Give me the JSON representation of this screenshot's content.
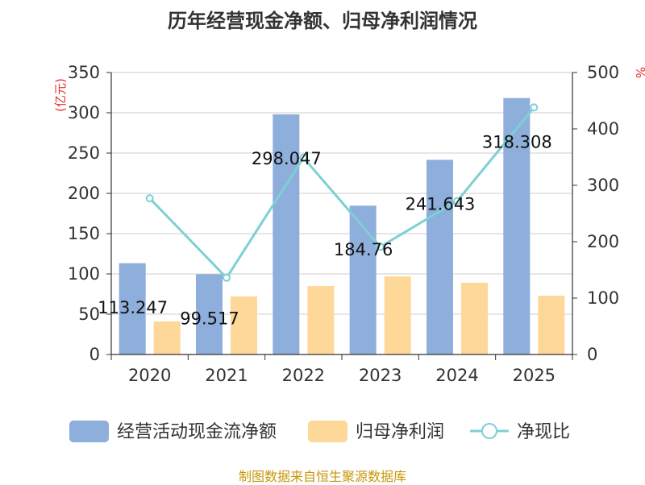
{
  "chart_data": {
    "type": "bar",
    "title": "历年经营现金净额、归母净利润情况",
    "categories": [
      "2020",
      "2021",
      "2022",
      "2023",
      "2024",
      "2025"
    ],
    "series": [
      {
        "name": "经营活动现金流净额",
        "type": "bar",
        "axis": "left",
        "values": [
          113.247,
          99.517,
          298.047,
          184.76,
          241.643,
          318.308
        ],
        "color": "#8eaedb"
      },
      {
        "name": "归母净利润",
        "type": "bar",
        "axis": "left",
        "values": [
          41,
          72,
          85,
          97,
          89,
          73
        ],
        "color": "#fdd898"
      },
      {
        "name": "净现比",
        "type": "line",
        "axis": "right",
        "values": [
          277,
          136,
          349,
          191,
          272,
          438
        ],
        "color": "#7dd0d4"
      }
    ],
    "data_labels": [
      "113.247",
      "99.517",
      "298.047",
      "184.76",
      "241.643",
      "318.308"
    ],
    "ylabel": "(亿元)",
    "y2label": "%",
    "ylim": [
      0,
      350
    ],
    "y2lim": [
      0,
      500
    ],
    "yticks": [
      0,
      50,
      100,
      150,
      200,
      250,
      300,
      350
    ],
    "y2ticks": [
      0,
      100,
      200,
      300,
      400,
      500
    ],
    "grid": true,
    "legend_position": "bottom"
  },
  "source_note": "制图数据来自恒生聚源数据库"
}
